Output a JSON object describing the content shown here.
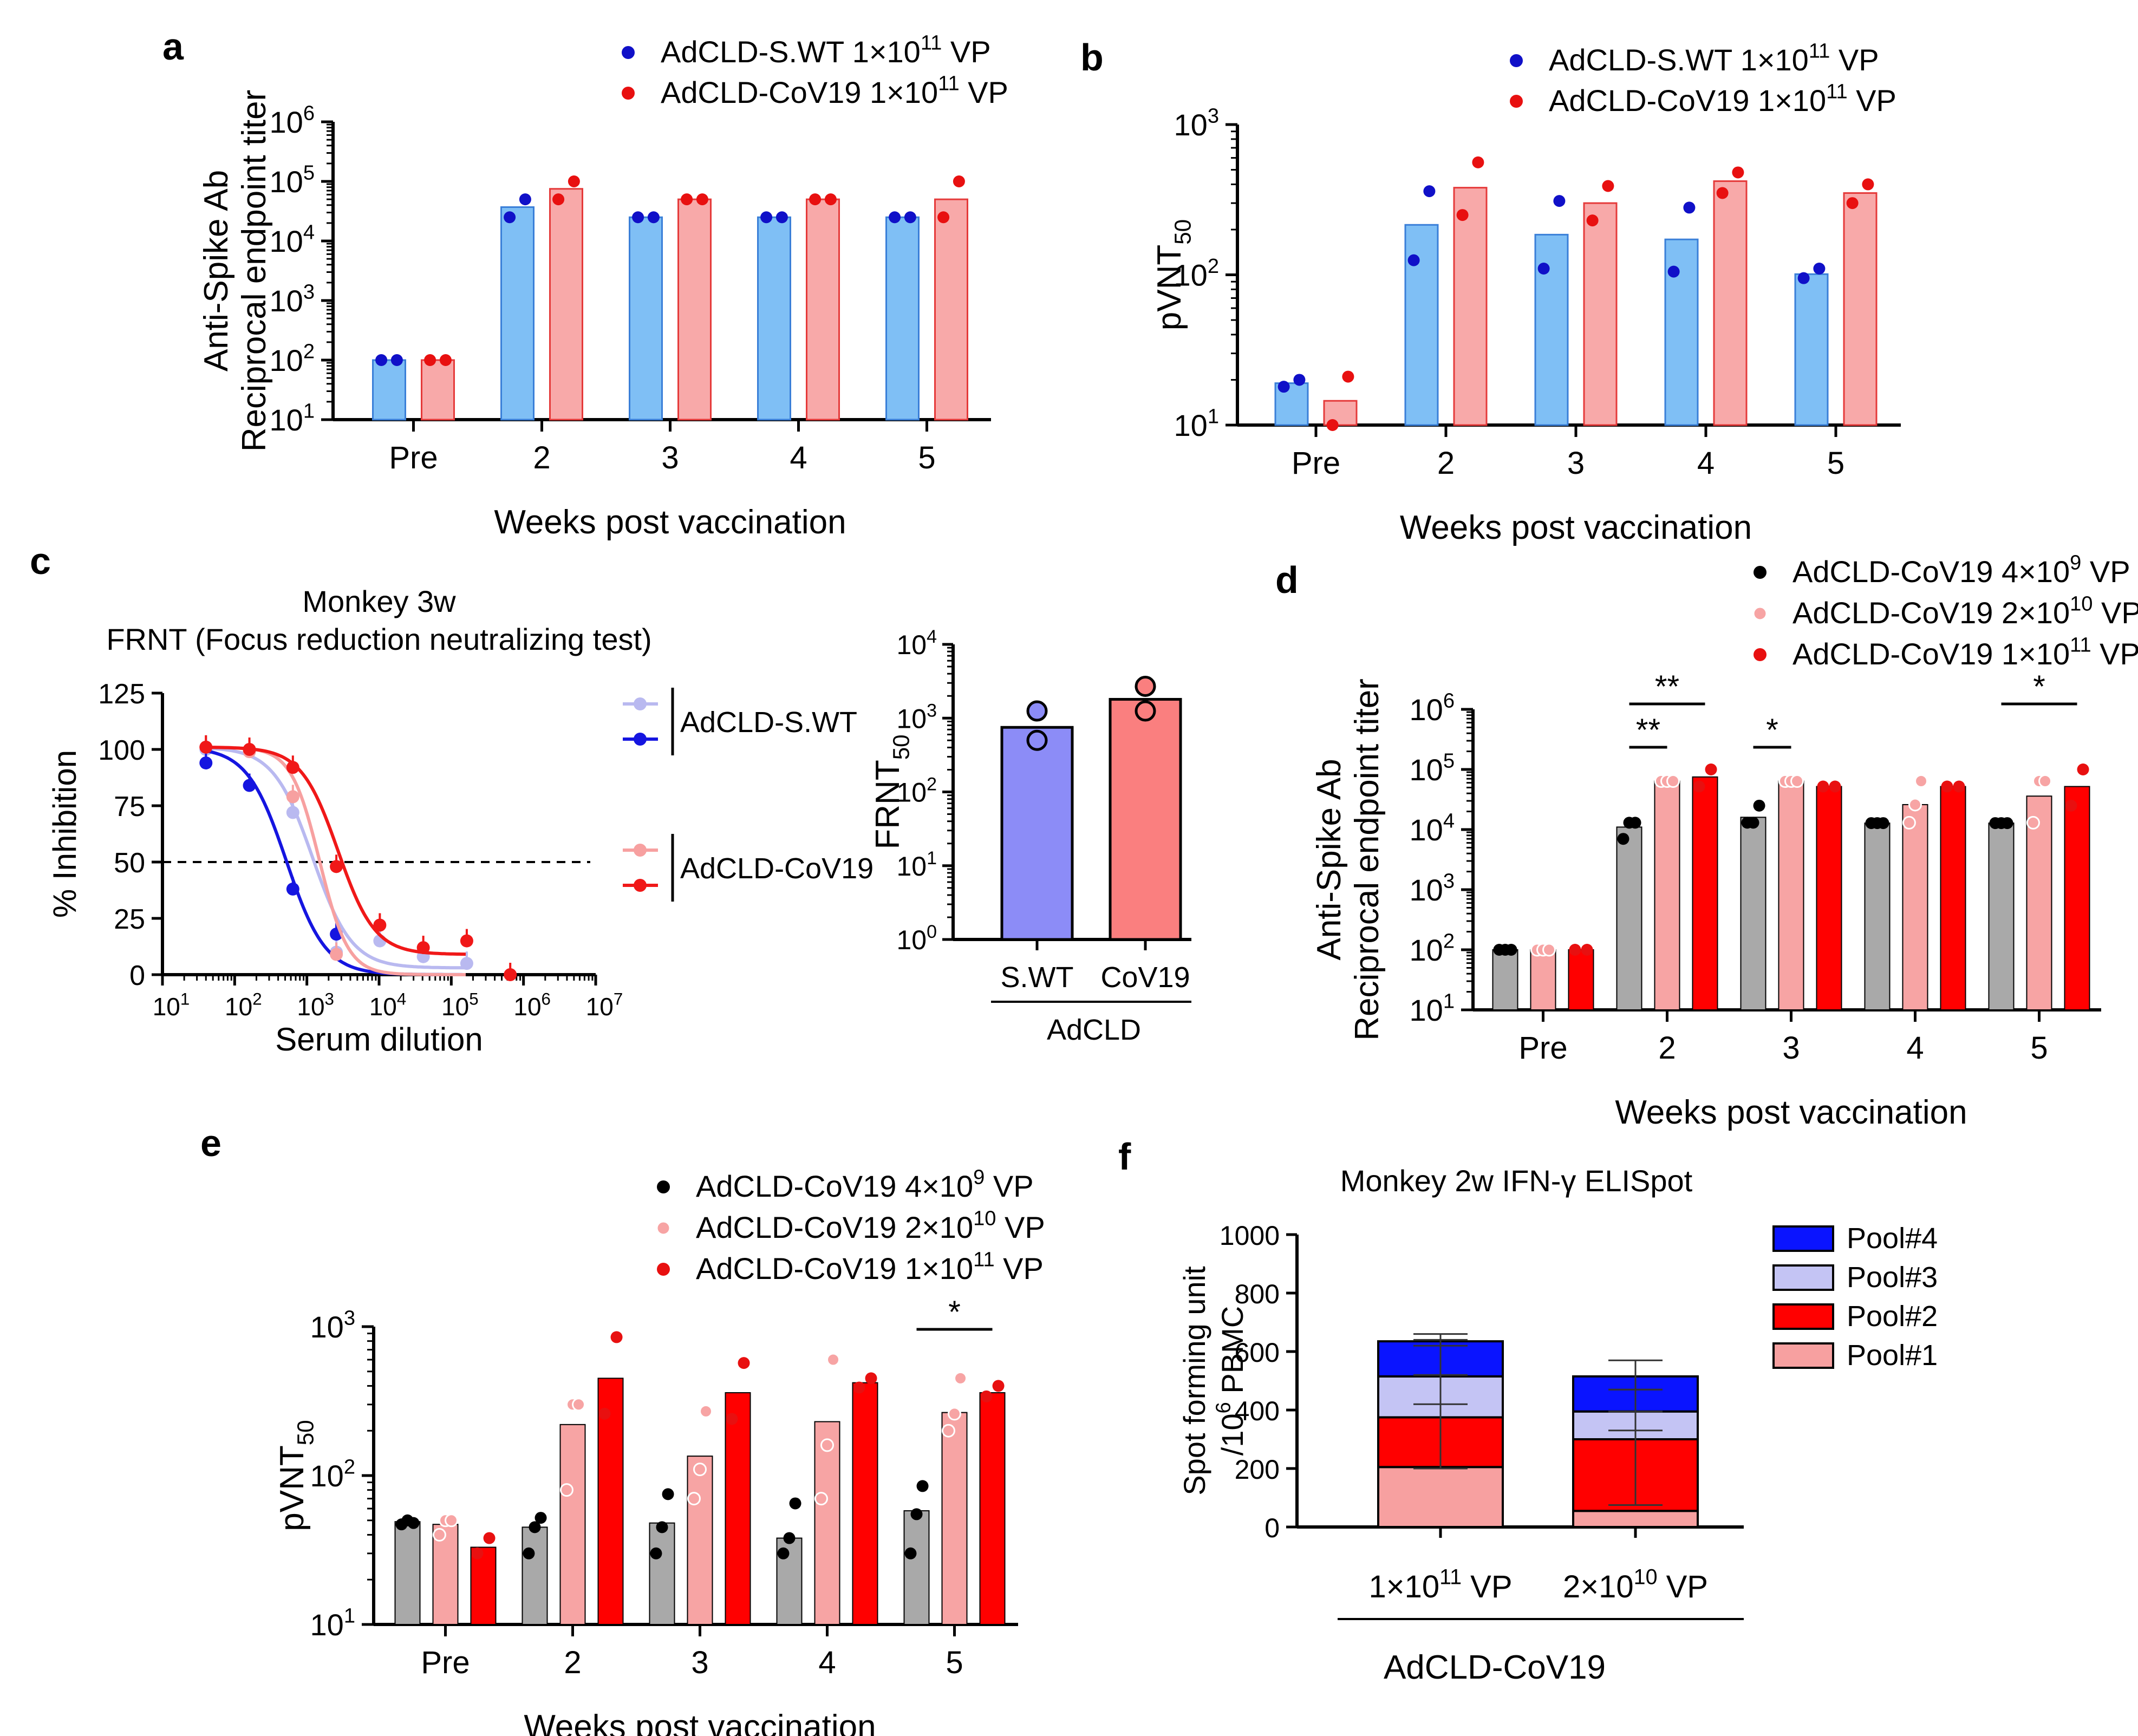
{
  "colors": {
    "swt_bar": "#7fbff5",
    "swt_edge": "#3a7fd8",
    "swt_dot": "#1010c8",
    "cov_bar": "#f8a9a9",
    "cov_edge": "#e53a3a",
    "cov_dot": "#e81010",
    "grey_bar": "#a9a9a9",
    "pink_bar": "#f7a4a4",
    "red_bar": "#ff0000",
    "pink_dot": "#f08a8a",
    "black_dot": "#000000",
    "curve_swt_light": "#b9b9f0",
    "curve_swt_dark": "#1515e0",
    "curve_cov_light": "#f7a0a0",
    "curve_cov_dark": "#f01818",
    "frnt_swt_bar": "#8c8cf7",
    "frnt_cov_bar": "#fa7f7f",
    "pool4": "#0a14ff",
    "pool3": "#c4c4f4",
    "pool2": "#ff0000",
    "pool1": "#f7a0a0"
  },
  "panels": {
    "a": "a",
    "b": "b",
    "c": "c",
    "d": "d",
    "e": "e",
    "f": "f"
  },
  "chart_data": [
    {
      "id": "a",
      "type": "bar",
      "scale": "log",
      "xlabel": "Weeks post vaccination",
      "ylabel": [
        "Anti-Spike Ab",
        "Reciprocal endpoint titer"
      ],
      "ylim": [
        10,
        1000000
      ],
      "yticks": [
        {
          "base": "10",
          "exp": "1"
        },
        {
          "base": "10",
          "exp": "2"
        },
        {
          "base": "10",
          "exp": "3"
        },
        {
          "base": "10",
          "exp": "4"
        },
        {
          "base": "10",
          "exp": "5"
        },
        {
          "base": "10",
          "exp": "6"
        }
      ],
      "categories": [
        "Pre",
        "2",
        "3",
        "4",
        "5"
      ],
      "series": [
        {
          "name": "AdCLD-S.WT 1×10",
          "sup": "11",
          "suffix": " VP",
          "bar": "swt_bar",
          "edge": "swt_edge",
          "dot": "swt_dot",
          "values": [
            100,
            37000,
            25000,
            25000,
            25000
          ],
          "points": [
            [
              100,
              100
            ],
            [
              25000,
              50000
            ],
            [
              25000,
              25000
            ],
            [
              25000,
              25000
            ],
            [
              25000,
              25000
            ]
          ]
        },
        {
          "name": "AdCLD-CoV19 1×10",
          "sup": "11",
          "suffix": " VP",
          "bar": "cov_bar",
          "edge": "cov_edge",
          "dot": "cov_dot",
          "values": [
            100,
            75000,
            50000,
            50000,
            50000
          ],
          "points": [
            [
              100,
              100
            ],
            [
              50000,
              100000
            ],
            [
              50000,
              50000
            ],
            [
              50000,
              50000
            ],
            [
              25000,
              100000
            ]
          ]
        }
      ]
    },
    {
      "id": "b",
      "type": "bar",
      "scale": "log",
      "xlabel": "Weeks post vaccination",
      "ylabel": [
        "pVNT"
      ],
      "ylabel_sub": "50",
      "ylim": [
        10,
        1000
      ],
      "yticks": [
        {
          "base": "10",
          "exp": "1"
        },
        {
          "base": "10",
          "exp": "2"
        },
        {
          "base": "10",
          "exp": "3"
        }
      ],
      "categories": [
        "Pre",
        "2",
        "3",
        "4",
        "5"
      ],
      "series": [
        {
          "name": "AdCLD-S.WT 1×10",
          "sup": "11",
          "suffix": " VP",
          "bar": "swt_bar",
          "edge": "swt_edge",
          "dot": "swt_dot",
          "values": [
            19,
            215,
            185,
            172,
            101
          ],
          "points": [
            [
              18,
              20
            ],
            [
              125,
              360
            ],
            [
              110,
              310
            ],
            [
              105,
              280
            ],
            [
              95,
              110
            ]
          ]
        },
        {
          "name": "AdCLD-CoV19 1×10",
          "sup": "11",
          "suffix": " VP",
          "bar": "cov_bar",
          "edge": "cov_edge",
          "dot": "cov_dot",
          "values": [
            14.5,
            380,
            300,
            420,
            350
          ],
          "points": [
            [
              10,
              21
            ],
            [
              250,
              560
            ],
            [
              230,
              390
            ],
            [
              350,
              480
            ],
            [
              300,
              400
            ]
          ]
        }
      ]
    },
    {
      "id": "c1",
      "type": "line",
      "scale": "log-x",
      "title": [
        "Monkey 3w",
        "FRNT (Focus reduction neutralizing test)"
      ],
      "xlabel": "Serum dilution",
      "ylabel": "% Inhibition",
      "xlim": [
        10,
        10000000
      ],
      "ylim": [
        0,
        125
      ],
      "xticks": [
        {
          "base": "10",
          "exp": "1"
        },
        {
          "base": "10",
          "exp": "2"
        },
        {
          "base": "10",
          "exp": "3"
        },
        {
          "base": "10",
          "exp": "4"
        },
        {
          "base": "10",
          "exp": "5"
        },
        {
          "base": "10",
          "exp": "6"
        },
        {
          "base": "10",
          "exp": "7"
        }
      ],
      "yticks": [
        "0",
        "25",
        "50",
        "75",
        "100",
        "125"
      ],
      "reference_line": 50,
      "legend_groups": [
        {
          "label": "AdCLD-S.WT",
          "colors": [
            "curve_swt_light",
            "curve_swt_dark"
          ]
        },
        {
          "label": "AdCLD-CoV19",
          "colors": [
            "curve_cov_light",
            "curve_cov_dark"
          ]
        }
      ],
      "series": [
        {
          "name": "AdCLD-S.WT (light)",
          "color": "curve_swt_light",
          "ic50": 1200,
          "hill": 1.6,
          "bottom": 3,
          "x": [
            40,
            160,
            640,
            2560,
            10240,
            40960,
            163840
          ],
          "y": [
            100,
            99,
            72,
            10,
            15,
            8,
            5
          ]
        },
        {
          "name": "AdCLD-S.WT (dark)",
          "color": "curve_swt_dark",
          "ic50": 520,
          "hill": 1.6,
          "bottom": 0,
          "x": [
            40,
            160,
            640,
            2560
          ],
          "y": [
            94,
            84,
            38,
            18
          ]
        },
        {
          "name": "AdCLD-CoV19 (light)",
          "color": "curve_cov_light",
          "ic50": 1500,
          "hill": 2.2,
          "bottom": 0,
          "x": [
            40,
            160,
            640,
            2560
          ],
          "y": [
            101,
            99,
            79,
            9
          ]
        },
        {
          "name": "AdCLD-CoV19 (dark)",
          "color": "curve_cov_dark",
          "ic50": 2700,
          "hill": 1.7,
          "bottom": 9,
          "x": [
            40,
            160,
            640,
            2560,
            10240,
            40960,
            163840,
            655360
          ],
          "y": [
            101,
            100,
            92,
            48,
            22,
            12,
            15,
            0
          ]
        }
      ]
    },
    {
      "id": "c2",
      "type": "bar",
      "scale": "log",
      "ylabel": [
        "FRNT"
      ],
      "ylabel_sub": "50",
      "ylim": [
        1,
        10000
      ],
      "yticks": [
        {
          "base": "10",
          "exp": "0"
        },
        {
          "base": "10",
          "exp": "1"
        },
        {
          "base": "10",
          "exp": "2"
        },
        {
          "base": "10",
          "exp": "3"
        },
        {
          "base": "10",
          "exp": "4"
        }
      ],
      "categories": [
        "S.WT",
        "CoV19"
      ],
      "group_label": "AdCLD",
      "values": [
        750,
        1800
      ],
      "bar_colors": [
        "frnt_swt_bar",
        "frnt_cov_bar"
      ],
      "points": [
        [
          1250,
          500
        ],
        [
          2700,
          1250
        ]
      ]
    },
    {
      "id": "d",
      "type": "bar",
      "scale": "log",
      "xlabel": "Weeks post vaccination",
      "ylabel": [
        "Anti-Spike Ab",
        "Reciprocal endpoint titer"
      ],
      "ylim": [
        10,
        1000000
      ],
      "yticks": [
        {
          "base": "10",
          "exp": "1"
        },
        {
          "base": "10",
          "exp": "2"
        },
        {
          "base": "10",
          "exp": "3"
        },
        {
          "base": "10",
          "exp": "4"
        },
        {
          "base": "10",
          "exp": "5"
        },
        {
          "base": "10",
          "exp": "6"
        }
      ],
      "categories": [
        "Pre",
        "2",
        "3",
        "4",
        "5"
      ],
      "series": [
        {
          "name": "AdCLD-CoV19 4×10",
          "sup": "9",
          "suffix": " VP",
          "bar": "grey_bar",
          "dot": "black_dot",
          "hollow": false,
          "values": [
            100,
            11000,
            16000,
            12800,
            12800
          ],
          "points": [
            [
              100,
              100,
              100
            ],
            [
              7000,
              13000,
              13000
            ],
            [
              13000,
              13000,
              25000
            ],
            [
              12800,
              12800,
              12800
            ],
            [
              12800,
              12800,
              12800
            ]
          ]
        },
        {
          "name": "AdCLD-CoV19 2×10",
          "sup": "10",
          "suffix": " VP",
          "bar": "pink_bar",
          "dot": "pink_dot",
          "hollow": true,
          "values": [
            100,
            64000,
            64000,
            26000,
            36000
          ],
          "points": [
            [
              100,
              100,
              100
            ],
            [
              64000,
              64000,
              64000
            ],
            [
              64000,
              64000,
              64000
            ],
            [
              13000,
              26000,
              64000
            ],
            [
              13000,
              64000,
              64000
            ]
          ]
        },
        {
          "name": "AdCLD-CoV19 1×10",
          "sup": "11",
          "suffix": " VP",
          "bar": "red_bar",
          "dot": "cov_dot",
          "hollow": false,
          "values": [
            100,
            75000,
            52000,
            52000,
            52000
          ],
          "points": [
            [
              100,
              100
            ],
            [
              52000,
              100000
            ],
            [
              52000,
              52000
            ],
            [
              52000,
              52000
            ],
            [
              25000,
              100000
            ]
          ]
        }
      ],
      "significance": [
        {
          "label": "**",
          "category": 1,
          "from": 0,
          "to": 2,
          "level": 2
        },
        {
          "label": "**",
          "category": 1,
          "from": 0,
          "to": 1,
          "level": 1
        },
        {
          "label": "*",
          "category": 2,
          "from": 0,
          "to": 1,
          "level": 1
        },
        {
          "label": "*",
          "category": 4,
          "from": 0,
          "to": 2,
          "level": 2
        }
      ]
    },
    {
      "id": "e",
      "type": "bar",
      "scale": "log",
      "xlabel": "Weeks post vaccination",
      "ylabel": [
        "pVNT"
      ],
      "ylabel_sub": "50",
      "ylim": [
        10,
        1000
      ],
      "yticks": [
        {
          "base": "10",
          "exp": "1"
        },
        {
          "base": "10",
          "exp": "2"
        },
        {
          "base": "10",
          "exp": "3"
        }
      ],
      "categories": [
        "Pre",
        "2",
        "3",
        "4",
        "5"
      ],
      "series": [
        {
          "name": "AdCLD-CoV19 4×10",
          "sup": "9",
          "suffix": " VP",
          "bar": "grey_bar",
          "dot": "black_dot",
          "hollow": false,
          "values": [
            49,
            45,
            48,
            38,
            58
          ],
          "points": [
            [
              47,
              50,
              48
            ],
            [
              30,
              45,
              52
            ],
            [
              30,
              45,
              75
            ],
            [
              30,
              38,
              65
            ],
            [
              30,
              55,
              85
            ]
          ]
        },
        {
          "name": "AdCLD-CoV19 2×10",
          "sup": "10",
          "suffix": " VP",
          "bar": "pink_bar",
          "dot": "pink_dot",
          "hollow": true,
          "values": [
            47,
            220,
            135,
            230,
            265
          ],
          "points": [
            [
              40,
              50,
              50
            ],
            [
              80,
              300,
              300
            ],
            [
              70,
              110,
              270
            ],
            [
              70,
              160,
              600
            ],
            [
              200,
              260,
              450
            ]
          ]
        },
        {
          "name": "AdCLD-CoV19 1×10",
          "sup": "11",
          "suffix": " VP",
          "bar": "red_bar",
          "dot": "cov_dot",
          "hollow": false,
          "values": [
            33,
            450,
            360,
            420,
            360
          ],
          "points": [
            [
              30,
              38
            ],
            [
              260,
              850
            ],
            [
              240,
              570
            ],
            [
              390,
              450
            ],
            [
              340,
              400
            ]
          ]
        }
      ],
      "significance": [
        {
          "label": "*",
          "category": 4,
          "from": 0,
          "to": 2,
          "level": 1
        }
      ]
    },
    {
      "id": "f",
      "type": "stacked-bar",
      "title": "Monkey 2w IFN-γ ELISpot",
      "ylabel": [
        "Spot forming unit",
        "/10"
      ],
      "ylabel_sup": "6",
      "ylabel_tail": " PBMC",
      "ylim": [
        0,
        1000
      ],
      "yticks": [
        "0",
        "200",
        "400",
        "600",
        "800",
        "1000"
      ],
      "categories": [
        {
          "pre": "1×10",
          "sup": "11",
          "post": " VP"
        },
        {
          "pre": "2×10",
          "sup": "10",
          "post": " VP"
        }
      ],
      "group_label": "AdCLD-CoV19",
      "series": [
        {
          "name": "Pool#1",
          "color": "pool1",
          "values": [
            205,
            55
          ]
        },
        {
          "name": "Pool#2",
          "color": "pool2",
          "values": [
            170,
            245
          ]
        },
        {
          "name": "Pool#3",
          "color": "pool3",
          "values": [
            140,
            95
          ]
        },
        {
          "name": "Pool#4",
          "color": "pool4",
          "values": [
            120,
            120
          ]
        }
      ],
      "legend_order": [
        "Pool#4",
        "Pool#3",
        "Pool#2",
        "Pool#1"
      ],
      "error_bars": [
        {
          "bar": 0,
          "center": 375,
          "low": 200,
          "high": 520
        },
        {
          "bar": 0,
          "center": 515,
          "low": 420,
          "high": 640
        },
        {
          "bar": 0,
          "center": 635,
          "low": 620,
          "high": 660
        },
        {
          "bar": 1,
          "center": 300,
          "low": 75,
          "high": 395
        },
        {
          "bar": 1,
          "center": 395,
          "low": 330,
          "high": 470
        },
        {
          "bar": 1,
          "center": 515,
          "low": 470,
          "high": 570
        }
      ]
    }
  ]
}
